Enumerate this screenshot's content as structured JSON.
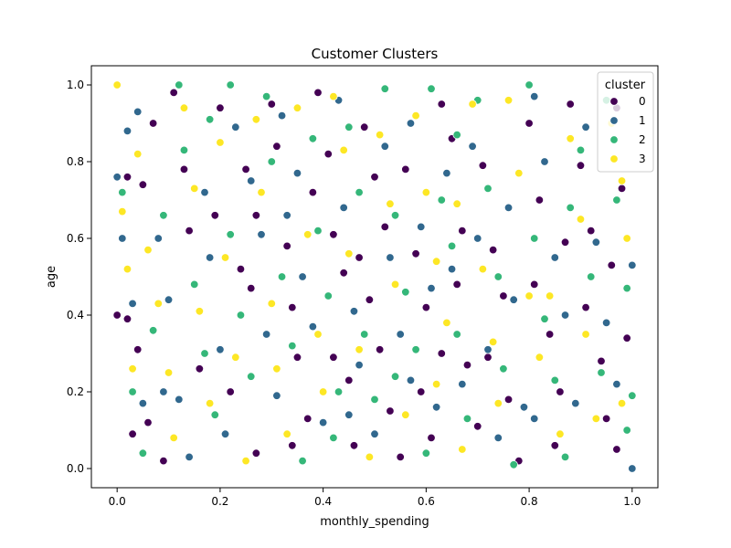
{
  "chart_data": {
    "type": "scatter",
    "title": "Customer Clusters",
    "xlabel": "monthly_spending",
    "ylabel": "age",
    "xlim": [
      -0.05,
      1.05
    ],
    "ylim": [
      -0.05,
      1.05
    ],
    "x_ticks": [
      "0.0",
      "0.2",
      "0.4",
      "0.6",
      "0.8",
      "1.0"
    ],
    "y_ticks": [
      "0.0",
      "0.2",
      "0.4",
      "0.6",
      "0.8",
      "1.0"
    ],
    "grid": false,
    "legend": {
      "title": "cluster",
      "placement": "top-right",
      "entries": [
        "0",
        "1",
        "2",
        "3"
      ]
    },
    "colors": [
      "#440154",
      "#31688e",
      "#35b779",
      "#fde725"
    ],
    "series": [
      {
        "name": "0",
        "points": [
          [
            0.11,
            0.98
          ],
          [
            0.07,
            0.9
          ],
          [
            0.02,
            0.76
          ],
          [
            0.05,
            0.74
          ],
          [
            0.14,
            0.62
          ],
          [
            0.0,
            0.4
          ],
          [
            0.02,
            0.39
          ],
          [
            0.04,
            0.31
          ],
          [
            0.06,
            0.12
          ],
          [
            0.03,
            0.09
          ],
          [
            0.09,
            0.02
          ],
          [
            0.16,
            0.26
          ],
          [
            0.2,
            0.94
          ],
          [
            0.19,
            0.66
          ],
          [
            0.25,
            0.78
          ],
          [
            0.27,
            0.66
          ],
          [
            0.24,
            0.52
          ],
          [
            0.26,
            0.47
          ],
          [
            0.22,
            0.2
          ],
          [
            0.27,
            0.04
          ],
          [
            0.3,
            0.95
          ],
          [
            0.31,
            0.84
          ],
          [
            0.33,
            0.58
          ],
          [
            0.34,
            0.42
          ],
          [
            0.35,
            0.29
          ],
          [
            0.37,
            0.13
          ],
          [
            0.34,
            0.06
          ],
          [
            0.39,
            0.98
          ],
          [
            0.41,
            0.82
          ],
          [
            0.42,
            0.61
          ],
          [
            0.44,
            0.51
          ],
          [
            0.42,
            0.29
          ],
          [
            0.45,
            0.23
          ],
          [
            0.46,
            0.06
          ],
          [
            0.48,
            0.89
          ],
          [
            0.5,
            0.76
          ],
          [
            0.52,
            0.63
          ],
          [
            0.49,
            0.44
          ],
          [
            0.51,
            0.31
          ],
          [
            0.53,
            0.15
          ],
          [
            0.55,
            0.03
          ],
          [
            0.56,
            0.78
          ],
          [
            0.58,
            0.56
          ],
          [
            0.6,
            0.42
          ],
          [
            0.59,
            0.2
          ],
          [
            0.61,
            0.08
          ],
          [
            0.63,
            0.95
          ],
          [
            0.65,
            0.86
          ],
          [
            0.67,
            0.62
          ],
          [
            0.66,
            0.48
          ],
          [
            0.68,
            0.27
          ],
          [
            0.7,
            0.11
          ],
          [
            0.71,
            0.79
          ],
          [
            0.73,
            0.57
          ],
          [
            0.75,
            0.45
          ],
          [
            0.72,
            0.29
          ],
          [
            0.76,
            0.18
          ],
          [
            0.78,
            0.02
          ],
          [
            0.8,
            0.9
          ],
          [
            0.82,
            0.7
          ],
          [
            0.81,
            0.48
          ],
          [
            0.84,
            0.35
          ],
          [
            0.86,
            0.2
          ],
          [
            0.85,
            0.06
          ],
          [
            0.88,
            0.95
          ],
          [
            0.9,
            0.79
          ],
          [
            0.92,
            0.62
          ],
          [
            0.91,
            0.42
          ],
          [
            0.94,
            0.28
          ],
          [
            0.95,
            0.13
          ],
          [
            0.97,
            0.94
          ],
          [
            0.98,
            0.73
          ],
          [
            0.96,
            0.53
          ],
          [
            0.99,
            0.34
          ],
          [
            0.97,
            0.05
          ],
          [
            0.13,
            0.78
          ],
          [
            0.38,
            0.72
          ],
          [
            0.63,
            0.3
          ],
          [
            0.87,
            0.59
          ],
          [
            0.47,
            0.55
          ]
        ]
      },
      {
        "name": "1",
        "points": [
          [
            0.0,
            0.76
          ],
          [
            0.02,
            0.88
          ],
          [
            0.04,
            0.93
          ],
          [
            0.01,
            0.6
          ],
          [
            0.03,
            0.43
          ],
          [
            0.05,
            0.17
          ],
          [
            0.08,
            0.6
          ],
          [
            0.1,
            0.44
          ],
          [
            0.12,
            0.18
          ],
          [
            0.14,
            0.03
          ],
          [
            0.17,
            0.72
          ],
          [
            0.18,
            0.55
          ],
          [
            0.2,
            0.31
          ],
          [
            0.21,
            0.09
          ],
          [
            0.23,
            0.89
          ],
          [
            0.26,
            0.75
          ],
          [
            0.28,
            0.61
          ],
          [
            0.29,
            0.35
          ],
          [
            0.31,
            0.19
          ],
          [
            0.32,
            0.92
          ],
          [
            0.35,
            0.77
          ],
          [
            0.36,
            0.5
          ],
          [
            0.38,
            0.37
          ],
          [
            0.4,
            0.12
          ],
          [
            0.43,
            0.96
          ],
          [
            0.44,
            0.68
          ],
          [
            0.46,
            0.41
          ],
          [
            0.47,
            0.27
          ],
          [
            0.5,
            0.09
          ],
          [
            0.52,
            0.84
          ],
          [
            0.53,
            0.55
          ],
          [
            0.55,
            0.35
          ],
          [
            0.57,
            0.23
          ],
          [
            0.59,
            0.63
          ],
          [
            0.61,
            0.47
          ],
          [
            0.62,
            0.16
          ],
          [
            0.64,
            0.77
          ],
          [
            0.65,
            0.52
          ],
          [
            0.67,
            0.22
          ],
          [
            0.69,
            0.84
          ],
          [
            0.7,
            0.6
          ],
          [
            0.72,
            0.31
          ],
          [
            0.74,
            0.08
          ],
          [
            0.76,
            0.68
          ],
          [
            0.77,
            0.44
          ],
          [
            0.79,
            0.16
          ],
          [
            0.81,
            0.97
          ],
          [
            0.83,
            0.8
          ],
          [
            0.85,
            0.55
          ],
          [
            0.87,
            0.4
          ],
          [
            0.89,
            0.17
          ],
          [
            0.91,
            0.89
          ],
          [
            0.93,
            0.59
          ],
          [
            0.95,
            0.38
          ],
          [
            0.97,
            0.22
          ],
          [
            1.0,
            0.53
          ],
          [
            1.0,
            0.0
          ],
          [
            0.09,
            0.2
          ],
          [
            0.33,
            0.66
          ],
          [
            0.57,
            0.9
          ],
          [
            0.81,
            0.13
          ],
          [
            0.45,
            0.14
          ]
        ]
      },
      {
        "name": "2",
        "points": [
          [
            0.01,
            0.72
          ],
          [
            0.03,
            0.2
          ],
          [
            0.05,
            0.04
          ],
          [
            0.07,
            0.36
          ],
          [
            0.09,
            0.66
          ],
          [
            0.12,
            1.0
          ],
          [
            0.13,
            0.83
          ],
          [
            0.15,
            0.48
          ],
          [
            0.17,
            0.3
          ],
          [
            0.19,
            0.14
          ],
          [
            0.22,
            1.0
          ],
          [
            0.22,
            0.61
          ],
          [
            0.24,
            0.4
          ],
          [
            0.26,
            0.24
          ],
          [
            0.29,
            0.97
          ],
          [
            0.3,
            0.8
          ],
          [
            0.32,
            0.5
          ],
          [
            0.34,
            0.32
          ],
          [
            0.36,
            0.02
          ],
          [
            0.38,
            0.86
          ],
          [
            0.39,
            0.62
          ],
          [
            0.41,
            0.45
          ],
          [
            0.43,
            0.2
          ],
          [
            0.45,
            0.89
          ],
          [
            0.47,
            0.72
          ],
          [
            0.48,
            0.35
          ],
          [
            0.5,
            0.18
          ],
          [
            0.52,
            0.99
          ],
          [
            0.54,
            0.66
          ],
          [
            0.56,
            0.46
          ],
          [
            0.58,
            0.31
          ],
          [
            0.6,
            0.04
          ],
          [
            0.61,
            0.99
          ],
          [
            0.63,
            0.7
          ],
          [
            0.65,
            0.58
          ],
          [
            0.66,
            0.35
          ],
          [
            0.68,
            0.13
          ],
          [
            0.7,
            0.96
          ],
          [
            0.72,
            0.73
          ],
          [
            0.74,
            0.5
          ],
          [
            0.75,
            0.26
          ],
          [
            0.77,
            0.01
          ],
          [
            0.8,
            1.0
          ],
          [
            0.81,
            0.6
          ],
          [
            0.83,
            0.39
          ],
          [
            0.85,
            0.23
          ],
          [
            0.87,
            0.03
          ],
          [
            0.9,
            0.83
          ],
          [
            0.92,
            0.5
          ],
          [
            0.94,
            0.25
          ],
          [
            0.95,
            0.96
          ],
          [
            0.97,
            0.7
          ],
          [
            0.99,
            0.47
          ],
          [
            1.0,
            0.19
          ],
          [
            0.99,
            0.1
          ],
          [
            0.18,
            0.91
          ],
          [
            0.42,
            0.08
          ],
          [
            0.66,
            0.87
          ],
          [
            0.88,
            0.68
          ],
          [
            0.54,
            0.24
          ]
        ]
      },
      {
        "name": "3",
        "points": [
          [
            0.0,
            1.0
          ],
          [
            0.01,
            0.67
          ],
          [
            0.02,
            0.52
          ],
          [
            0.03,
            0.26
          ],
          [
            0.04,
            0.82
          ],
          [
            0.06,
            0.57
          ],
          [
            0.08,
            0.43
          ],
          [
            0.1,
            0.25
          ],
          [
            0.11,
            0.08
          ],
          [
            0.13,
            0.94
          ],
          [
            0.15,
            0.73
          ],
          [
            0.16,
            0.41
          ],
          [
            0.18,
            0.17
          ],
          [
            0.2,
            0.85
          ],
          [
            0.21,
            0.55
          ],
          [
            0.23,
            0.29
          ],
          [
            0.25,
            0.02
          ],
          [
            0.27,
            0.91
          ],
          [
            0.28,
            0.72
          ],
          [
            0.3,
            0.43
          ],
          [
            0.31,
            0.26
          ],
          [
            0.33,
            0.09
          ],
          [
            0.35,
            0.94
          ],
          [
            0.37,
            0.61
          ],
          [
            0.39,
            0.35
          ],
          [
            0.4,
            0.2
          ],
          [
            0.42,
            0.97
          ],
          [
            0.44,
            0.83
          ],
          [
            0.45,
            0.56
          ],
          [
            0.47,
            0.31
          ],
          [
            0.49,
            0.03
          ],
          [
            0.51,
            0.87
          ],
          [
            0.53,
            0.69
          ],
          [
            0.54,
            0.48
          ],
          [
            0.56,
            0.14
          ],
          [
            0.58,
            0.92
          ],
          [
            0.6,
            0.72
          ],
          [
            0.62,
            0.54
          ],
          [
            0.64,
            0.38
          ],
          [
            0.66,
            0.69
          ],
          [
            0.67,
            0.05
          ],
          [
            0.69,
            0.95
          ],
          [
            0.71,
            0.52
          ],
          [
            0.73,
            0.33
          ],
          [
            0.74,
            0.17
          ],
          [
            0.76,
            0.96
          ],
          [
            0.78,
            0.77
          ],
          [
            0.8,
            0.45
          ],
          [
            0.82,
            0.29
          ],
          [
            0.84,
            0.45
          ],
          [
            0.86,
            0.09
          ],
          [
            0.88,
            0.86
          ],
          [
            0.9,
            0.65
          ],
          [
            0.91,
            0.35
          ],
          [
            0.93,
            0.13
          ],
          [
            0.96,
            0.9
          ],
          [
            0.98,
            0.75
          ],
          [
            0.99,
            0.6
          ],
          [
            0.98,
            0.17
          ],
          [
            0.62,
            0.22
          ]
        ]
      }
    ]
  }
}
